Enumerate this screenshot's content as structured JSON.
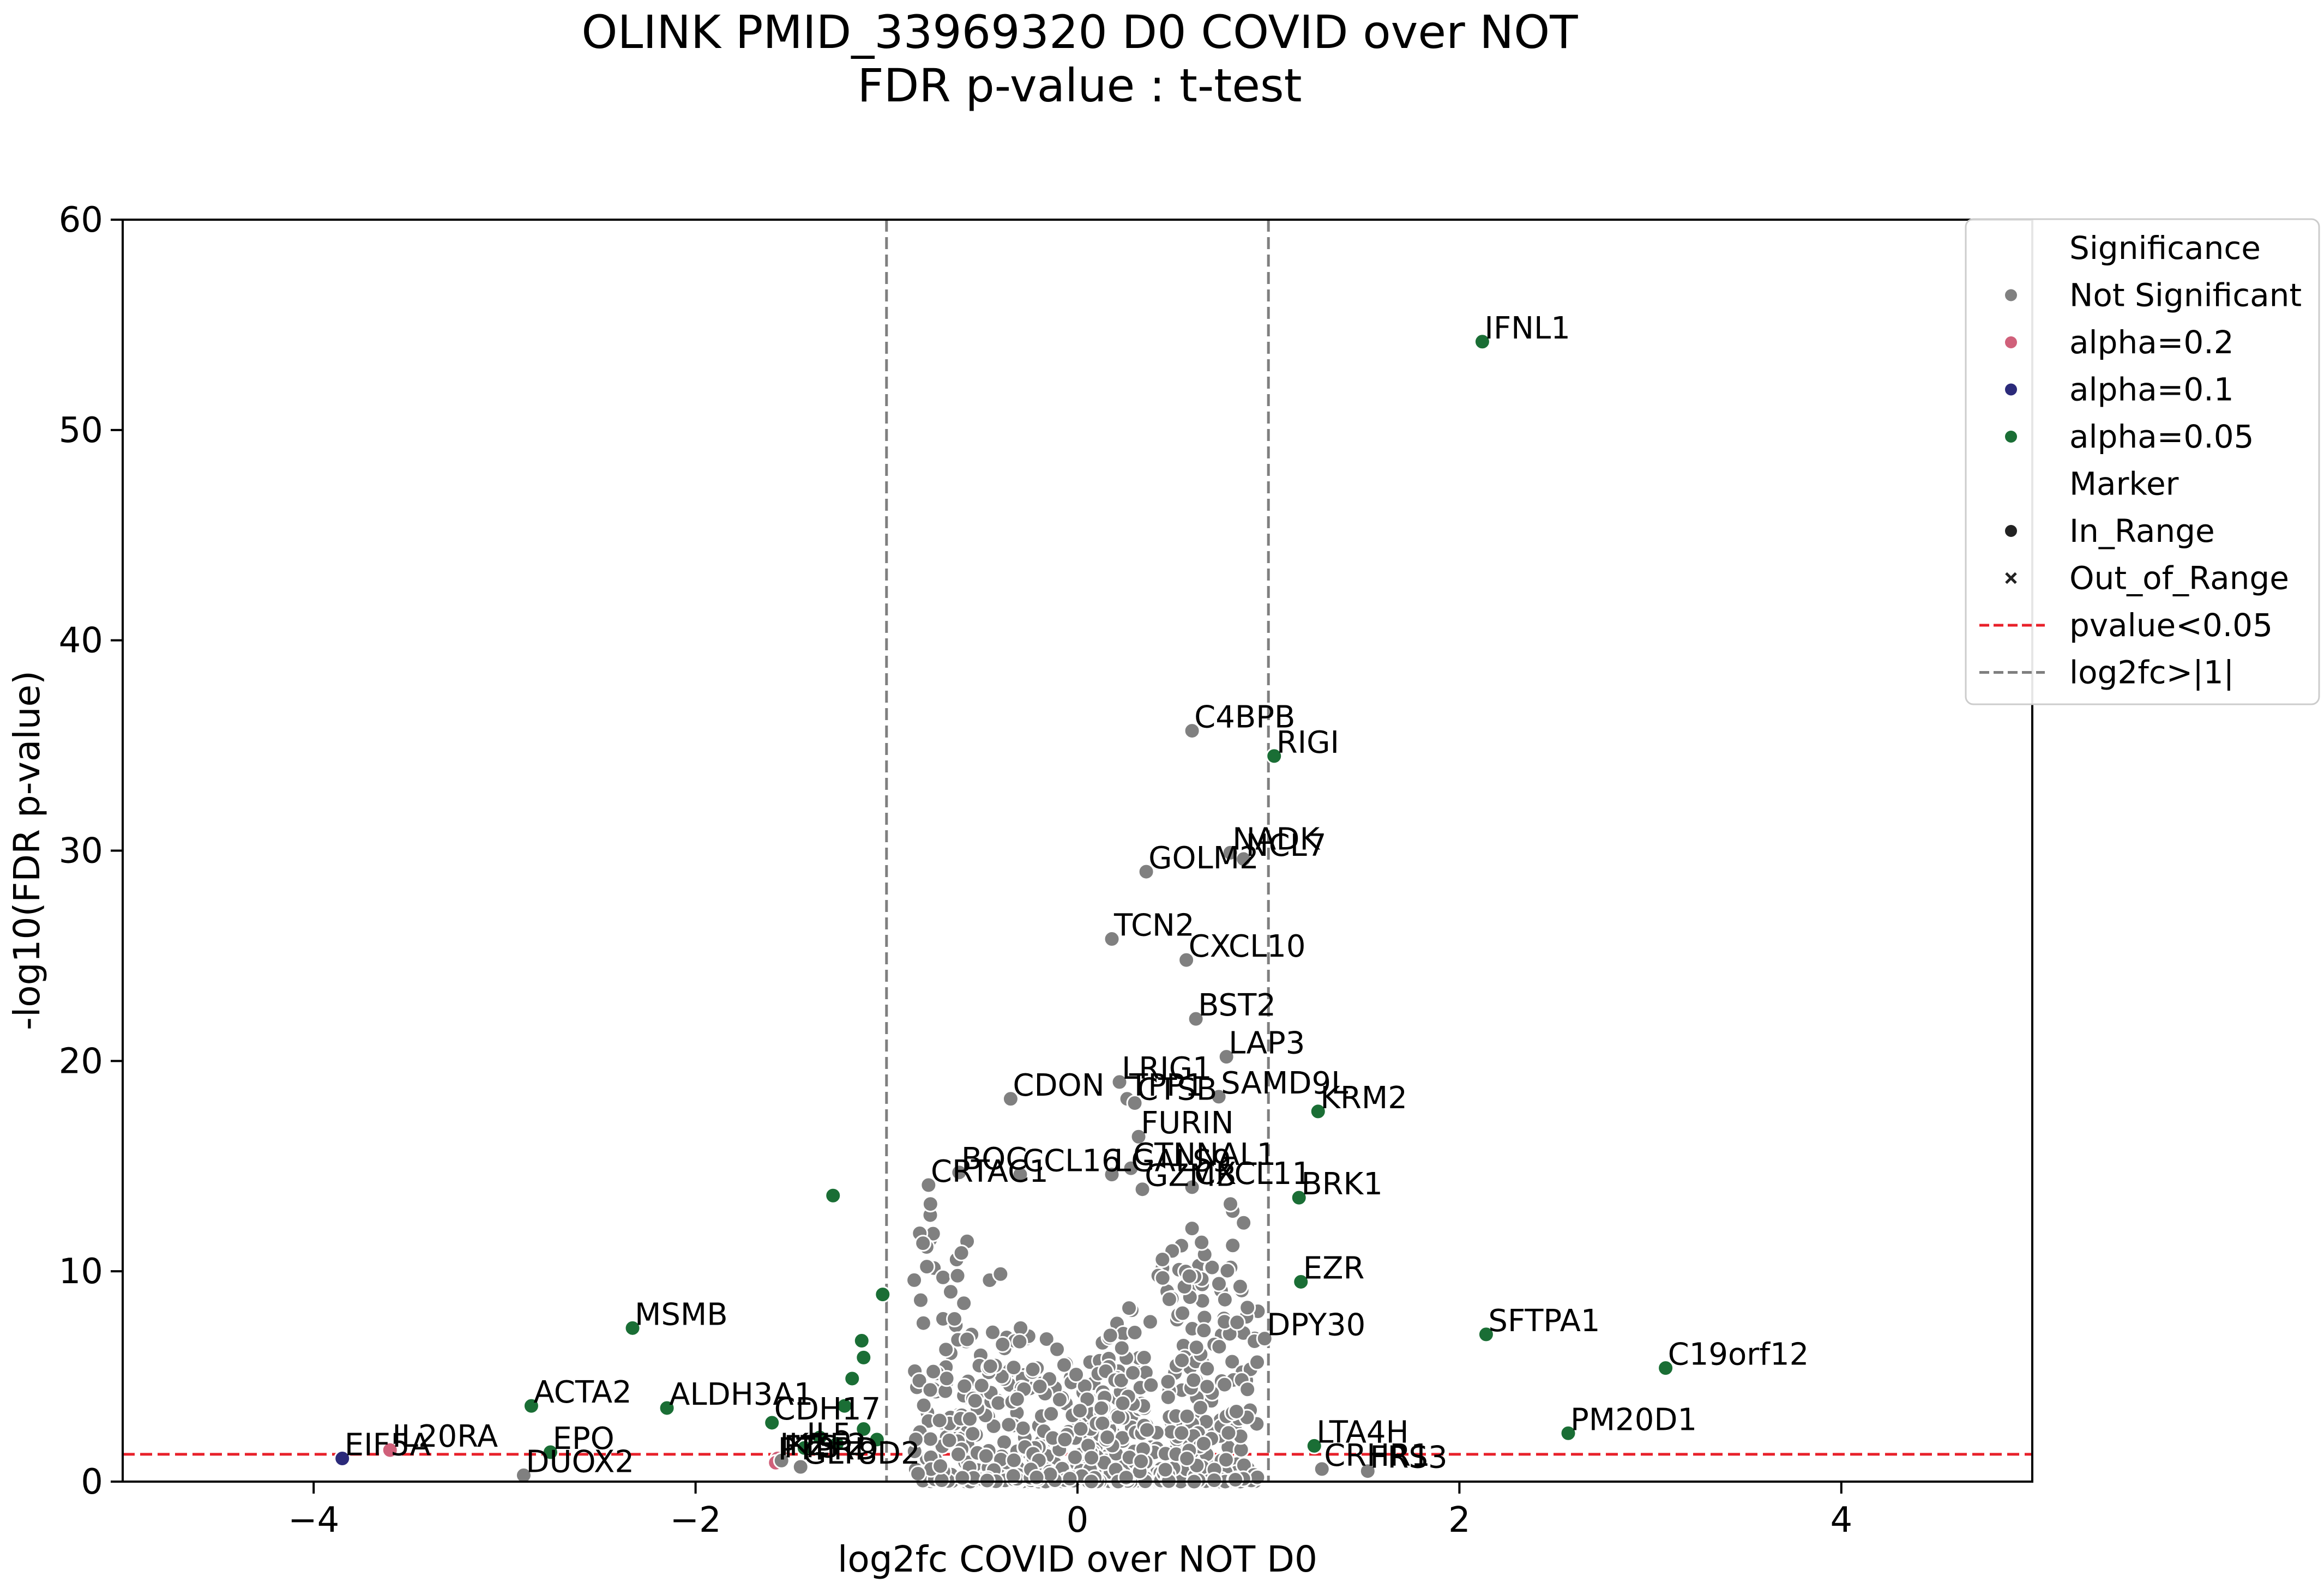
{
  "chart_data": {
    "type": "scatter",
    "title": "OLINK PMID_33969320 D0 COVID over NOT",
    "subtitle": "FDR p-value : t-test",
    "xlabel": "log2fc COVID over NOT D0",
    "ylabel": "-log10(FDR p-value)",
    "xlim": [
      -5,
      5
    ],
    "ylim": [
      0,
      60
    ],
    "xticks": [
      -4,
      -2,
      0,
      2,
      4
    ],
    "yticks": [
      0,
      10,
      20,
      30,
      40,
      50,
      60
    ],
    "xtick_labels": [
      "−4",
      "−2",
      "0",
      "2",
      "4"
    ],
    "ytick_labels": [
      "0",
      "10",
      "20",
      "30",
      "40",
      "50",
      "60"
    ],
    "grid": false,
    "threshold_lines": {
      "pvalue_y": 1.3,
      "log2fc_x": [
        -1,
        1
      ]
    },
    "colors": {
      "not_significant": "#808080",
      "alpha_0_2": "#d0607a",
      "alpha_0_1": "#2b2a7a",
      "alpha_0_05": "#1a6e35",
      "pvalue_line": "#e8202a",
      "log2fc_line": "#7f7f7f"
    },
    "legend": {
      "placement": "upper-right-outside",
      "entries": [
        {
          "label": "Significance",
          "kind": "header"
        },
        {
          "label": "Not Significant",
          "kind": "dot",
          "color": "#808080"
        },
        {
          "label": "alpha=0.2",
          "kind": "dot",
          "color": "#d0607a"
        },
        {
          "label": "alpha=0.1",
          "kind": "dot",
          "color": "#2b2a7a"
        },
        {
          "label": "alpha=0.05",
          "kind": "dot",
          "color": "#1a6e35"
        },
        {
          "label": "Marker",
          "kind": "header"
        },
        {
          "label": "In_Range",
          "kind": "dot",
          "color": "#222222"
        },
        {
          "label": "Out_of_Range",
          "kind": "cross",
          "color": "#222222"
        },
        {
          "label": "pvalue<0.05",
          "kind": "dashed",
          "color": "#e8202a"
        },
        {
          "label": "log2fc>|1|",
          "kind": "dashed",
          "color": "#7f7f7f"
        }
      ]
    },
    "labeled_points": [
      {
        "label": "IFNL1",
        "x": 2.12,
        "y": 54.2,
        "sig": "alpha=0.05"
      },
      {
        "label": "C4BPB",
        "x": 0.6,
        "y": 35.7,
        "sig": "Not Significant"
      },
      {
        "label": "RIGI",
        "x": 1.03,
        "y": 34.5,
        "sig": "alpha=0.05"
      },
      {
        "label": "NADK",
        "x": 0.8,
        "y": 29.9,
        "sig": "Not Significant"
      },
      {
        "label": "NCL7",
        "x": 0.87,
        "y": 29.6,
        "sig": "Not Significant"
      },
      {
        "label": "GOLM2",
        "x": 0.36,
        "y": 29.0,
        "sig": "Not Significant"
      },
      {
        "label": "TCN2",
        "x": 0.18,
        "y": 25.8,
        "sig": "Not Significant"
      },
      {
        "label": "CXCL10",
        "x": 0.57,
        "y": 24.8,
        "sig": "Not Significant"
      },
      {
        "label": "BST2",
        "x": 0.62,
        "y": 22.0,
        "sig": "Not Significant"
      },
      {
        "label": "LAP3",
        "x": 0.78,
        "y": 20.2,
        "sig": "Not Significant"
      },
      {
        "label": "LRIG1",
        "x": 0.22,
        "y": 19.0,
        "sig": "Not Significant"
      },
      {
        "label": "SAMD9L",
        "x": 0.74,
        "y": 18.3,
        "sig": "Not Significant"
      },
      {
        "label": "TPP1",
        "x": 0.26,
        "y": 18.2,
        "sig": "Not Significant"
      },
      {
        "label": "CTSB",
        "x": 0.3,
        "y": 18.0,
        "sig": "Not Significant"
      },
      {
        "label": "CDON",
        "x": -0.35,
        "y": 18.2,
        "sig": "Not Significant"
      },
      {
        "label": "KRM2",
        "x": 1.26,
        "y": 17.6,
        "sig": "alpha=0.05"
      },
      {
        "label": "FURIN",
        "x": 0.32,
        "y": 16.4,
        "sig": "Not Significant"
      },
      {
        "label": "CTNNAL1",
        "x": 0.28,
        "y": 14.9,
        "sig": "Not Significant"
      },
      {
        "label": "BOC",
        "x": -0.62,
        "y": 14.7,
        "sig": "Not Significant"
      },
      {
        "label": "CCL16",
        "x": -0.3,
        "y": 14.6,
        "sig": "Not Significant"
      },
      {
        "label": "LGALS9",
        "x": 0.18,
        "y": 14.6,
        "sig": "Not Significant"
      },
      {
        "label": "CRTAC1",
        "x": -0.78,
        "y": 14.1,
        "sig": "Not Significant"
      },
      {
        "label": "GZMB",
        "x": 0.34,
        "y": 13.9,
        "sig": "Not Significant"
      },
      {
        "label": "CXCL11",
        "x": 0.6,
        "y": 14.0,
        "sig": "Not Significant"
      },
      {
        "label": "BRK1",
        "x": 1.16,
        "y": 13.5,
        "sig": "alpha=0.05"
      },
      {
        "label": "EZR",
        "x": 1.17,
        "y": 9.5,
        "sig": "alpha=0.05"
      },
      {
        "label": "MSMB",
        "x": -2.33,
        "y": 7.3,
        "sig": "alpha=0.05"
      },
      {
        "label": "DPY30",
        "x": 0.98,
        "y": 6.8,
        "sig": "Not Significant"
      },
      {
        "label": "SFTPA1",
        "x": 2.14,
        "y": 7.0,
        "sig": "alpha=0.05"
      },
      {
        "label": "C19orf12",
        "x": 3.08,
        "y": 5.4,
        "sig": "alpha=0.05"
      },
      {
        "label": "ACTA2",
        "x": -2.86,
        "y": 3.6,
        "sig": "alpha=0.05"
      },
      {
        "label": "ALDH3A1",
        "x": -2.15,
        "y": 3.5,
        "sig": "alpha=0.05"
      },
      {
        "label": "CDH17",
        "x": -1.6,
        "y": 2.8,
        "sig": "alpha=0.05"
      },
      {
        "label": "PM20D1",
        "x": 2.57,
        "y": 2.3,
        "sig": "alpha=0.05"
      },
      {
        "label": "IL20RA",
        "x": -3.6,
        "y": 1.5,
        "sig": "alpha=0.2"
      },
      {
        "label": "EPO",
        "x": -2.76,
        "y": 1.4,
        "sig": "alpha=0.05"
      },
      {
        "label": "IL5",
        "x": -1.43,
        "y": 1.6,
        "sig": "alpha=0.05"
      },
      {
        "label": "EIF5A",
        "x": -3.85,
        "y": 1.1,
        "sig": "alpha=0.1"
      },
      {
        "label": "IKZF2",
        "x": -1.57,
        "y": 1.1,
        "sig": "alpha=0.2"
      },
      {
        "label": "LTA4H",
        "x": 1.24,
        "y": 1.7,
        "sig": "alpha=0.05"
      },
      {
        "label": "PTPRD",
        "x": -1.58,
        "y": 0.9,
        "sig": "alpha=0.2"
      },
      {
        "label": "GLT8D2",
        "x": -1.45,
        "y": 0.7,
        "sig": "Not Significant"
      },
      {
        "label": "FTS",
        "x": -1.55,
        "y": 1.0,
        "sig": "Not Significant"
      },
      {
        "label": "DUOX2",
        "x": -2.9,
        "y": 0.3,
        "sig": "Not Significant"
      },
      {
        "label": "CRHR1",
        "x": 1.28,
        "y": 0.6,
        "sig": "Not Significant"
      },
      {
        "label": "FRS3",
        "x": 1.52,
        "y": 0.5,
        "sig": "Not Significant"
      }
    ],
    "unlabeled_significant_points": [
      {
        "x": -1.28,
        "y": 13.6,
        "sig": "alpha=0.05"
      },
      {
        "x": -1.02,
        "y": 8.9,
        "sig": "alpha=0.05"
      },
      {
        "x": -1.13,
        "y": 6.7,
        "sig": "alpha=0.05"
      },
      {
        "x": -1.12,
        "y": 5.9,
        "sig": "alpha=0.05"
      },
      {
        "x": -1.18,
        "y": 4.9,
        "sig": "alpha=0.05"
      },
      {
        "x": -1.22,
        "y": 3.6,
        "sig": "alpha=0.05"
      },
      {
        "x": -1.12,
        "y": 2.5,
        "sig": "alpha=0.05"
      },
      {
        "x": -1.05,
        "y": 2.0,
        "sig": "alpha=0.05"
      },
      {
        "x": -1.35,
        "y": 2.1,
        "sig": "alpha=0.05"
      },
      {
        "x": -1.26,
        "y": 1.8,
        "sig": "alpha=0.05"
      }
    ],
    "background_points": {
      "sig": "Not Significant",
      "count": 780,
      "note_distribution": "dense cloud of proteins within |log2fc|<1 and -log10(FDR) roughly 0-13",
      "x": [],
      "y": []
    }
  }
}
